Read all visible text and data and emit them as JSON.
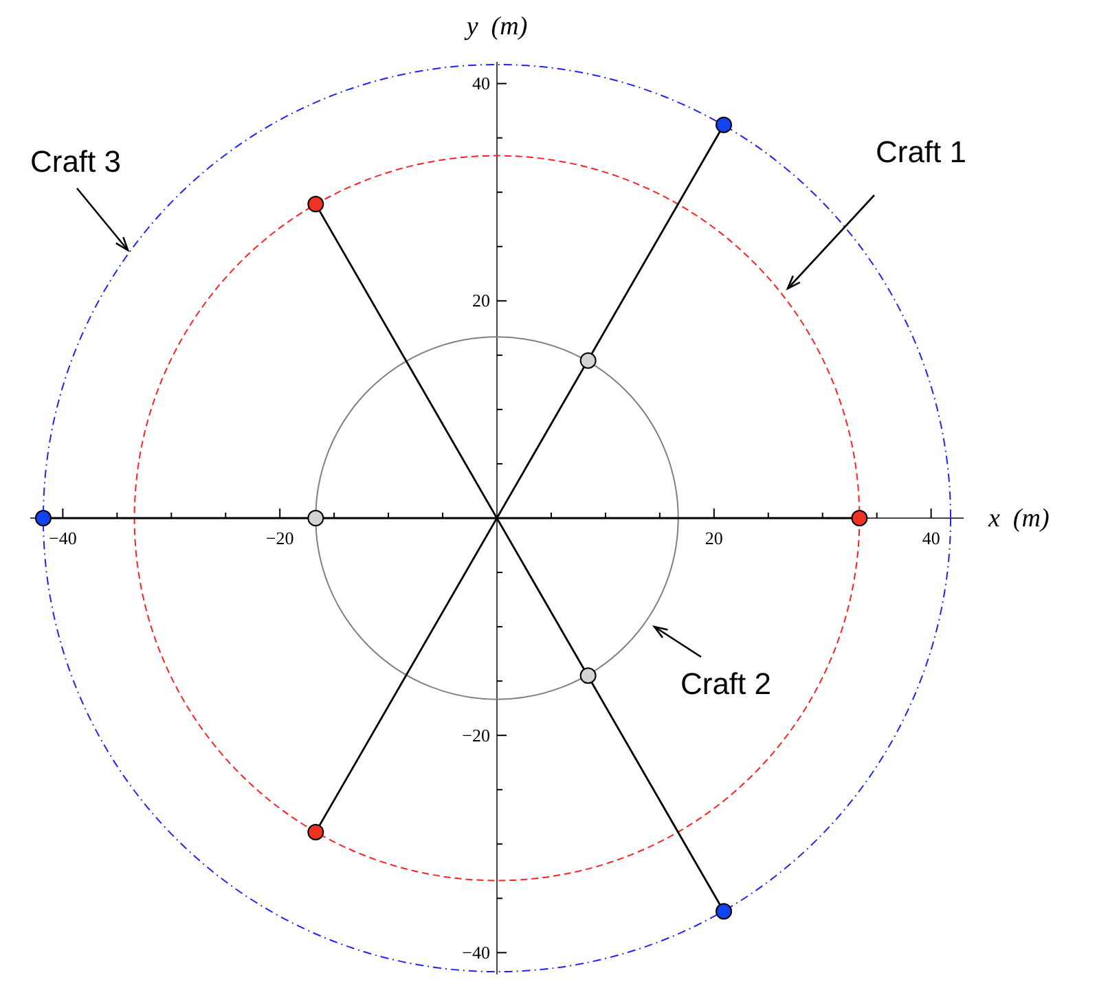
{
  "chart_data": {
    "type": "scatter",
    "xlabel": "x  (m)",
    "ylabel": "y  (m)",
    "xlim": [
      -43,
      43
    ],
    "ylim": [
      -42,
      42
    ],
    "xticks": [
      {
        "value": -40,
        "label": "−40"
      },
      {
        "value": -35,
        "label": null
      },
      {
        "value": -30,
        "label": null
      },
      {
        "value": -25,
        "label": null
      },
      {
        "value": -20,
        "label": "−20"
      },
      {
        "value": -15,
        "label": null
      },
      {
        "value": -10,
        "label": null
      },
      {
        "value": -5,
        "label": null
      },
      {
        "value": 5,
        "label": null
      },
      {
        "value": 10,
        "label": null
      },
      {
        "value": 15,
        "label": null
      },
      {
        "value": 20,
        "label": "20"
      },
      {
        "value": 25,
        "label": null
      },
      {
        "value": 30,
        "label": null
      },
      {
        "value": 35,
        "label": null
      },
      {
        "value": 40,
        "label": "40"
      }
    ],
    "yticks": [
      {
        "value": -40,
        "label": "−40"
      },
      {
        "value": -35,
        "label": null
      },
      {
        "value": -30,
        "label": null
      },
      {
        "value": -25,
        "label": null
      },
      {
        "value": -20,
        "label": "−20"
      },
      {
        "value": -15,
        "label": null
      },
      {
        "value": -10,
        "label": null
      },
      {
        "value": -5,
        "label": null
      },
      {
        "value": 5,
        "label": null
      },
      {
        "value": 10,
        "label": null
      },
      {
        "value": 15,
        "label": null
      },
      {
        "value": 20,
        "label": "20"
      },
      {
        "value": 25,
        "label": null
      },
      {
        "value": 30,
        "label": null
      },
      {
        "value": 35,
        "label": null
      },
      {
        "value": 40,
        "label": "40"
      }
    ],
    "grid": false,
    "annotations": [
      "Craft 1",
      "Craft 2",
      "Craft 3"
    ],
    "series": [
      {
        "type": "line",
        "color": "#000000",
        "line_style": "solid",
        "marker": "none",
        "x": [
          -41.8,
          33.4
        ],
        "values": [
          0,
          0
        ]
      },
      {
        "type": "line",
        "color": "#000000",
        "line_style": "solid",
        "marker": "none",
        "x": [
          -16.7,
          20.9
        ],
        "values": [
          28.9,
          -36.2
        ]
      },
      {
        "type": "line",
        "color": "#000000",
        "line_style": "solid",
        "marker": "none",
        "x": [
          -16.7,
          20.9
        ],
        "values": [
          -28.9,
          36.2
        ]
      },
      {
        "type": "scatter",
        "color": "#ee3322",
        "marker": "circle",
        "x": [
          33.4,
          -16.7,
          -16.7
        ],
        "values": [
          0,
          28.9,
          -28.9
        ]
      },
      {
        "type": "scatter",
        "color": "#1144ee",
        "marker": "circle",
        "x": [
          -41.8,
          20.9,
          20.9
        ],
        "values": [
          0,
          36.2,
          -36.2
        ]
      },
      {
        "type": "scatter",
        "color": "#d3d3d3",
        "marker": "circle",
        "x": [
          -16.7,
          8.4,
          8.4
        ],
        "values": [
          0,
          14.5,
          -14.5
        ]
      }
    ]
  }
}
